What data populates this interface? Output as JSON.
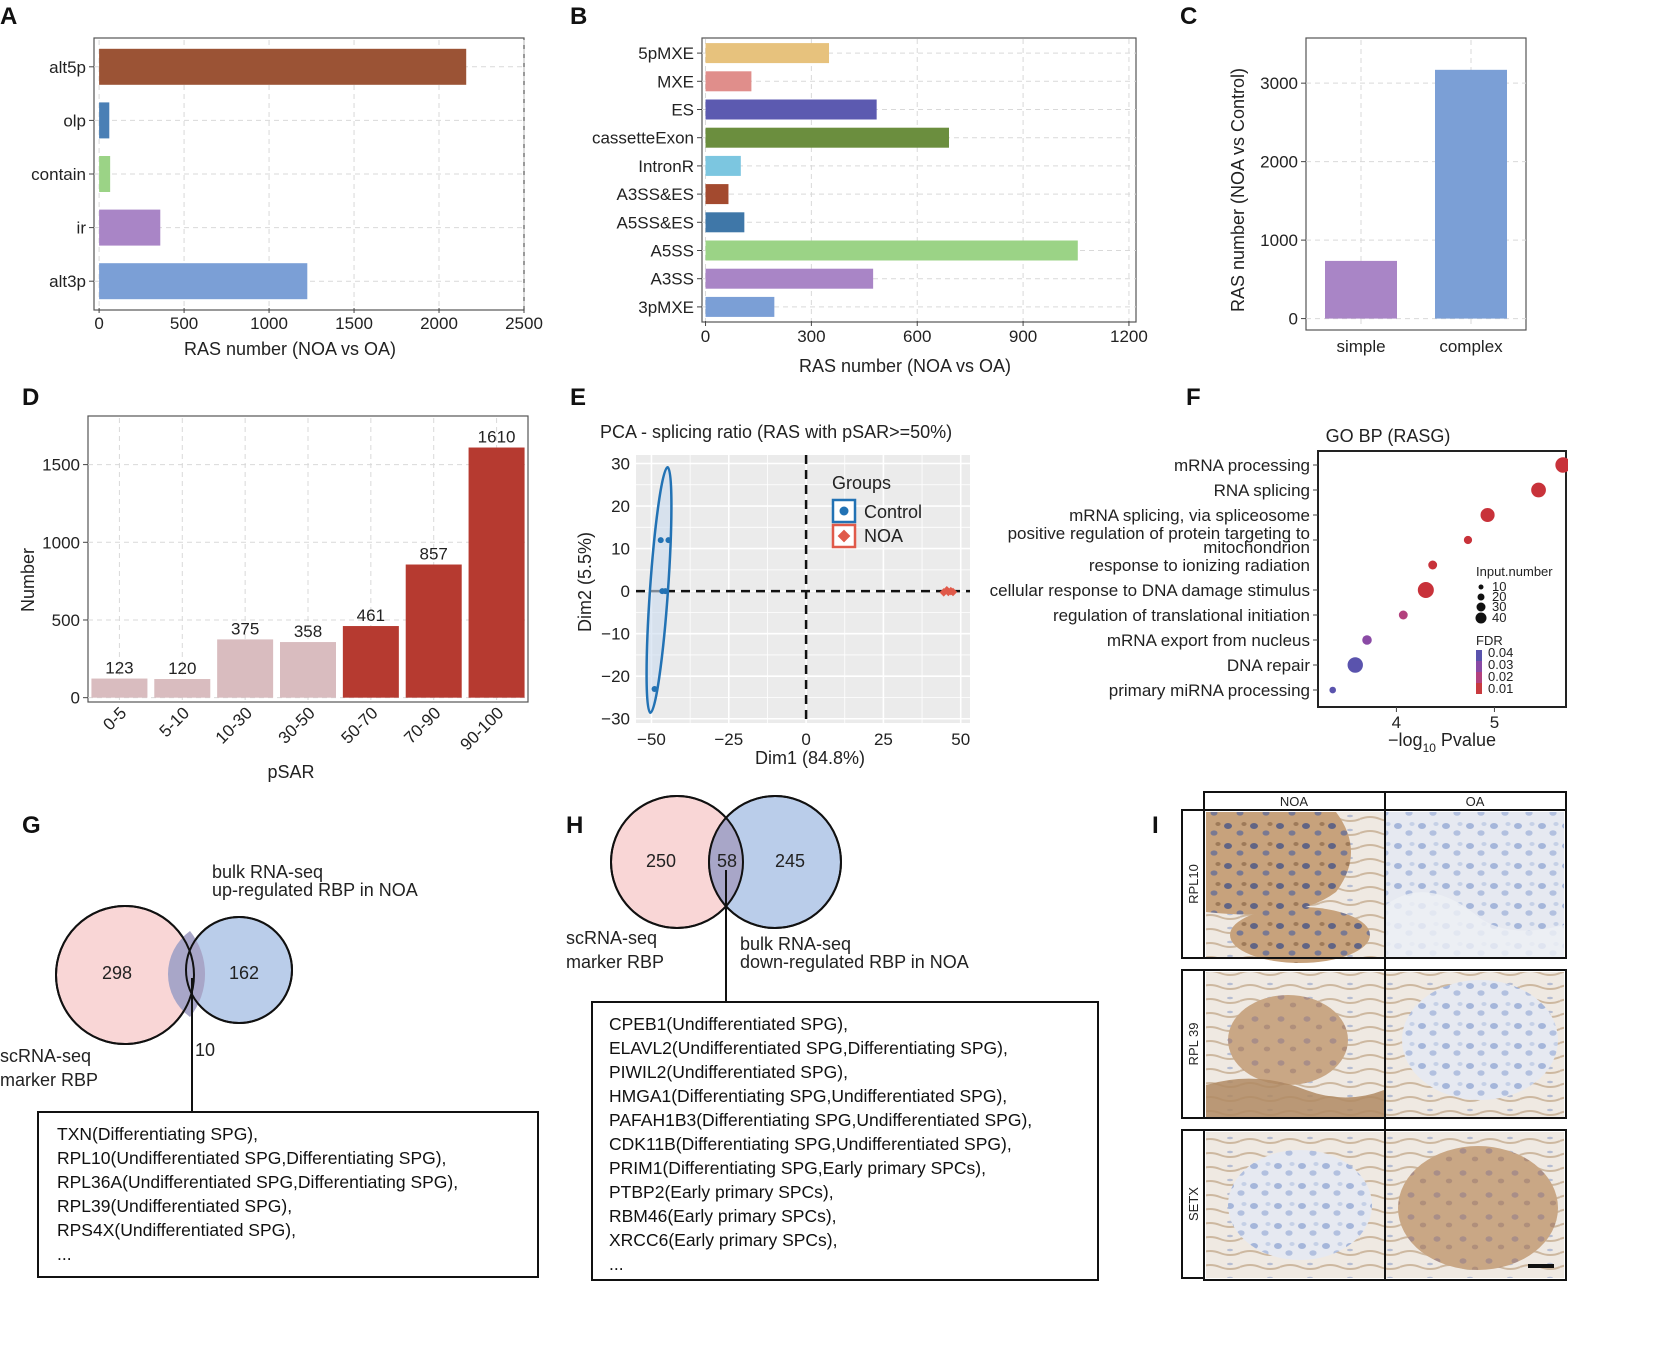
{
  "panel_letters": [
    "A",
    "B",
    "C",
    "D",
    "E",
    "F",
    "G",
    "H",
    "I"
  ],
  "chart_data": [
    {
      "panel": "A",
      "type": "bar",
      "orientation": "horizontal",
      "categories": [
        "alt5p",
        "olp",
        "contain",
        "ir",
        "alt3p"
      ],
      "values": [
        2160,
        60,
        65,
        360,
        1225
      ],
      "colors": [
        "#9b5335",
        "#4a7fb5",
        "#9bd386",
        "#a985c6",
        "#7b9fd6"
      ],
      "xlabel": "RAS number (NOA vs OA)",
      "xticks": [
        0,
        500,
        1000,
        1500,
        2000,
        2500
      ],
      "xlim": [
        -30,
        2500
      ]
    },
    {
      "panel": "B",
      "type": "bar",
      "orientation": "horizontal",
      "categories": [
        "5pMXE",
        "MXE",
        "ES",
        "cassetteExon",
        "IntronR",
        "A3SS&ES",
        "A5SS&ES",
        "A5SS",
        "A3SS",
        "3pMXE"
      ],
      "values": [
        350,
        130,
        485,
        690,
        100,
        65,
        110,
        1055,
        475,
        195
      ],
      "colors": [
        "#e7c27d",
        "#e08e8b",
        "#5c5ab0",
        "#6b8e3e",
        "#7cc6e0",
        "#a34a2f",
        "#3f77a8",
        "#9bd386",
        "#a985c6",
        "#7b9fd6"
      ],
      "xlabel": "RAS number (NOA vs OA)",
      "xticks": [
        0,
        300,
        600,
        900,
        1200
      ],
      "xlim": [
        -10,
        1220
      ]
    },
    {
      "panel": "C",
      "type": "bar",
      "categories": [
        "simple",
        "complex"
      ],
      "values": [
        735,
        3170
      ],
      "colors": [
        "#a985c6",
        "#7b9fd6"
      ],
      "ylabel": "RAS number (NOA vs Control)",
      "yticks": [
        0,
        1000,
        2000,
        3000
      ],
      "ylim": [
        -120,
        3550
      ]
    },
    {
      "panel": "D",
      "type": "bar",
      "categories": [
        "0-5",
        "5-10",
        "10-30",
        "30-50",
        "50-70",
        "70-90",
        "90-100"
      ],
      "values": [
        123,
        120,
        375,
        358,
        461,
        857,
        1610
      ],
      "value_labels": [
        "123",
        "120",
        "375",
        "358",
        "461",
        "857",
        "1610"
      ],
      "colors": [
        "#d9bcbf",
        "#d9bcbf",
        "#d9bcbf",
        "#d9bcbf",
        "#b63a30",
        "#b63a30",
        "#b63a30"
      ],
      "xlabel": "pSAR",
      "ylabel": "Number",
      "yticks": [
        0,
        500,
        1000,
        1500
      ],
      "ylim": [
        -15,
        1800
      ]
    },
    {
      "panel": "E",
      "type": "scatter",
      "title": "PCA - splicing ratio (RAS with pSAR>=50%)",
      "xlabel": "Dim1 (84.8%)",
      "ylabel": "Dim2 (5.5%)",
      "xticks": [
        -50,
        -25,
        0,
        25,
        50
      ],
      "xtick_labels": [
        "−50",
        "−25",
        "0",
        "25",
        "50"
      ],
      "yticks": [
        -30,
        -20,
        -10,
        0,
        10,
        20,
        30
      ],
      "ytick_labels": [
        "−30",
        "−20",
        "−10",
        "0",
        "10",
        "20",
        "30"
      ],
      "xlim": [
        -55,
        53
      ],
      "ylim": [
        -31,
        32
      ],
      "legend_title": "Groups",
      "series": [
        {
          "name": "Control",
          "color": "#2272b4",
          "points": [
            [
              -47,
              12
            ],
            [
              -44.5,
              12
            ],
            [
              -49,
              -23
            ],
            [
              -46.5,
              0
            ],
            [
              -45.5,
              0
            ]
          ]
        },
        {
          "name": "NOA",
          "color": "#e05a4a",
          "points": [
            [
              44.5,
              -0.3
            ],
            [
              45.5,
              0.2
            ],
            [
              46,
              -0.2
            ],
            [
              46.8,
              0
            ],
            [
              47.5,
              -0.2
            ]
          ]
        }
      ]
    },
    {
      "panel": "F",
      "type": "scatter",
      "title": "GO BP (RASG)",
      "xlabel_main": "−log",
      "xlabel_sub": "10",
      "xlabel_tail": " Pvalue",
      "xticks": [
        4,
        5
      ],
      "xtick_labels": [
        "4",
        "5"
      ],
      "xlim": [
        3.2,
        5.73
      ],
      "terms": [
        "mRNA processing",
        "RNA splicing",
        "mRNA splicing, via spliceosome",
        "positive regulation of protein targeting to",
        "mitochondrion",
        "response to ionizing radiation",
        "cellular response to DNA damage stimulus",
        "regulation of translational initiation",
        "mRNA export from nucleus",
        "DNA repair",
        "primary miRNA processing"
      ],
      "points": [
        {
          "x": 5.7,
          "row": 0,
          "size": 32,
          "fdr": 0.01
        },
        {
          "x": 5.45,
          "row": 1,
          "size": 30,
          "fdr": 0.01
        },
        {
          "x": 4.93,
          "row": 2,
          "size": 28,
          "fdr": 0.012
        },
        {
          "x": 4.73,
          "row": 3,
          "size": 10,
          "fdr": 0.015
        },
        {
          "x": 4.37,
          "row": 4,
          "size": 12,
          "fdr": 0.015
        },
        {
          "x": 4.3,
          "row": 5,
          "size": 34,
          "fdr": 0.012
        },
        {
          "x": 4.07,
          "row": 6,
          "size": 12,
          "fdr": 0.018
        },
        {
          "x": 3.7,
          "row": 7,
          "size": 14,
          "fdr": 0.03
        },
        {
          "x": 3.58,
          "row": 8,
          "size": 32,
          "fdr": 0.038
        },
        {
          "x": 3.35,
          "row": 9,
          "size": 5,
          "fdr": 0.04
        }
      ],
      "size_legend_title": "Input.number",
      "size_legend": [
        "10",
        "20",
        "30",
        "40"
      ],
      "fdr_legend_title": "FDR",
      "fdr_legend": [
        "0.04",
        "0.03",
        "0.02",
        "0.01"
      ],
      "fdr_colors": [
        "#5a53ad",
        "#8a4aa5",
        "#b3417e",
        "#c83a3f"
      ]
    }
  ],
  "venn_g": {
    "left_count": "298",
    "right_count": "162",
    "overlap_count": "10",
    "right_label_line1": "bulk RNA-seq",
    "right_label_line2": "up-regulated RBP in NOA",
    "left_label_line1": "scRNA-seq",
    "left_label_line2": "marker RBP",
    "box_lines": [
      "TXN(Differentiating SPG),",
      "RPL10(Undifferentiated SPG,Differentiating SPG),",
      "RPL36A(Undifferentiated SPG,Differentiating SPG),",
      "RPL39(Undifferentiated SPG),",
      "RPS4X(Undifferentiated SPG),",
      "..."
    ]
  },
  "venn_h": {
    "left_count": "250",
    "overlap_count": "58",
    "right_count": "245",
    "left_label_line1": "scRNA-seq",
    "left_label_line2": "marker RBP",
    "right_label_line1": "bulk RNA-seq",
    "right_label_line2": "down-regulated RBP in NOA",
    "box_lines": [
      "CPEB1(Undifferentiated SPG),",
      "ELAVL2(Undifferentiated SPG,Differentiating SPG),",
      "PIWIL2(Undifferentiated SPG),",
      "HMGA1(Differentiating SPG,Undifferentiated SPG),",
      "PAFAH1B3(Differentiating SPG,Undifferentiated SPG),",
      "CDK11B(Differentiating SPG,Undifferentiated SPG),",
      "PRIM1(Differentiating SPG,Early primary SPCs),",
      "PTBP2(Early primary SPCs),",
      "RBM46(Early primary SPCs),",
      "XRCC6(Early primary SPCs),",
      "..."
    ]
  },
  "ihc": {
    "columns": [
      "NOA",
      "OA"
    ],
    "rows": [
      "RPL10",
      "RPL 39",
      "SETX"
    ]
  },
  "colors": {
    "brown_stain": "#b38a62",
    "blue_stain": "#9fb1d6",
    "background": "#f2eee9"
  }
}
